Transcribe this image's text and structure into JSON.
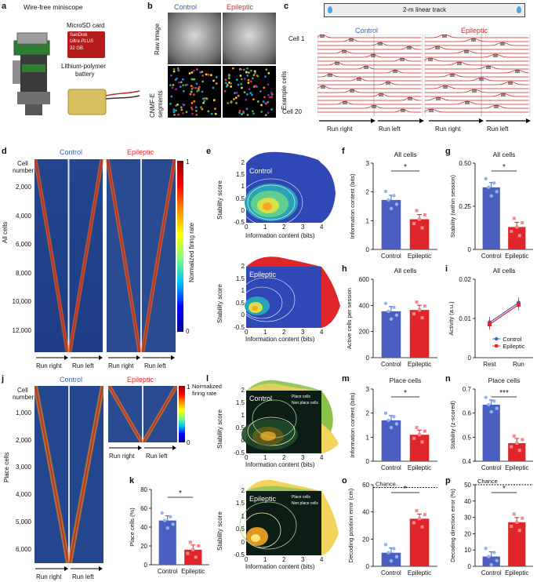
{
  "panel_letters": [
    "a",
    "b",
    "c",
    "d",
    "e",
    "f",
    "g",
    "h",
    "i",
    "j",
    "k",
    "l",
    "m",
    "n",
    "o",
    "p"
  ],
  "colors": {
    "control": "#4a5fc1",
    "epileptic": "#e0262a",
    "heat_low": "#1a237e",
    "heat_high": "#b71c1c"
  },
  "a": {
    "title": "Wire-free miniscope",
    "sd": "MicroSD card",
    "battery_1": "Lithium-polymer",
    "battery_2": "battery",
    "sd_brand": "SanDisk",
    "sd_model": "Ultra PLUS",
    "sd_size": "32 GB"
  },
  "b": {
    "control": "Control",
    "epileptic": "Epileptic",
    "row1": "Raw image",
    "row2a": "CNMF-E",
    "row2b": "segments"
  },
  "c": {
    "track": "2-m linear track",
    "control": "Control",
    "epileptic": "Epileptic",
    "ylabel": "Example cells",
    "cell1": "Cell 1",
    "cell20": "Cell 20",
    "run_right": "Run right",
    "run_left": "Run left"
  },
  "d": {
    "control": "Control",
    "epileptic": "Epileptic",
    "cell_number_1": "Cell",
    "cell_number_2": "number",
    "ylabel": "All cells",
    "ticks": [
      "2,000",
      "4,000",
      "6,000",
      "8,000",
      "10,000",
      "12,000"
    ],
    "cb_label": "Normalized firing rate",
    "cb_max": "1",
    "cb_min": "0",
    "run_right": "Run right",
    "run_left": "Run left"
  },
  "e": {
    "control": "Control",
    "epileptic": "Epileptic",
    "ylabel": "Stability score",
    "xlabel": "Information content (bits)",
    "yticks": [
      "2",
      "1.5",
      "1",
      "0.5",
      "0",
      "-0.5"
    ],
    "xticks": [
      "0",
      "1",
      "2",
      "3",
      "4"
    ]
  },
  "l": {
    "control": "Control",
    "epileptic": "Epileptic",
    "ylabel": "Stability score",
    "xlabel": "Information content (bits)",
    "legend_place": "Place cells",
    "legend_nonplace": "Non place cells",
    "yticks": [
      "2",
      "1.5",
      "1",
      "0.5",
      "0",
      "-0.5"
    ],
    "xticks": [
      "0",
      "1",
      "2",
      "3",
      "4"
    ]
  },
  "j": {
    "control": "Control",
    "epileptic": "Epileptic",
    "cell_number_1": "Cell",
    "cell_number_2": "number",
    "ylabel": "Place cells",
    "ticks": [
      "1,000",
      "2,000",
      "3,000",
      "4,000",
      "5,000",
      "6,000"
    ],
    "cb_label": "Normalized firing rate",
    "cb_max": "1",
    "cb_min": "0",
    "run_right": "Run right",
    "run_left": "Run left"
  },
  "chart_data": [
    {
      "id": "f",
      "type": "bar",
      "title": "All cells",
      "categories": [
        "Control",
        "Epileptic"
      ],
      "values": [
        1.72,
        1.05
      ],
      "ylabel": "Information content (bits)",
      "ylim": [
        0,
        3
      ],
      "yticks": [
        "0",
        "1",
        "2",
        "3"
      ],
      "sig": "*"
    },
    {
      "id": "g",
      "type": "bar",
      "title": "All cells",
      "categories": [
        "Control",
        "Epileptic"
      ],
      "values": [
        0.36,
        0.13
      ],
      "ylabel": "Stability (within session)",
      "ylim": [
        0,
        0.5
      ],
      "yticks": [
        "0",
        "0.25",
        "0.50"
      ],
      "sig": "*"
    },
    {
      "id": "h",
      "type": "bar",
      "title": "All cells",
      "categories": [
        "Control",
        "Epileptic"
      ],
      "values": [
        355,
        365
      ],
      "ylabel": "Active cells per session",
      "ylim": [
        0,
        600
      ],
      "yticks": [
        "0",
        "200",
        "400",
        "600"
      ],
      "sig": ""
    },
    {
      "id": "i",
      "type": "line",
      "title": "All cells",
      "categories": [
        "Rest",
        "Run"
      ],
      "series": [
        {
          "name": "Control",
          "values": [
            0.009,
            0.014
          ]
        },
        {
          "name": "Epileptic",
          "values": [
            0.0085,
            0.0135
          ]
        }
      ],
      "ylabel": "Activity (a.u.)",
      "ylim": [
        0,
        0.02
      ],
      "yticks": [
        "0",
        "0.01",
        "0.02"
      ]
    },
    {
      "id": "k",
      "type": "bar",
      "title": "",
      "categories": [
        "Control",
        "Epileptic"
      ],
      "values": [
        47,
        16
      ],
      "ylabel": "Place cells (%)",
      "ylim": [
        0,
        80
      ],
      "yticks": [
        "0",
        "20",
        "40",
        "60",
        "80"
      ],
      "sig": "*"
    },
    {
      "id": "m",
      "type": "bar",
      "title": "Place cells",
      "categories": [
        "Control",
        "Epileptic"
      ],
      "values": [
        1.7,
        1.1
      ],
      "ylabel": "Information content (bits)",
      "ylim": [
        0,
        3
      ],
      "yticks": [
        "0",
        "1",
        "2",
        "3"
      ],
      "sig": "*"
    },
    {
      "id": "n",
      "type": "bar",
      "title": "Place cells",
      "categories": [
        "Control",
        "Epileptic"
      ],
      "values": [
        0.635,
        0.475
      ],
      "ylabel": "Stability (z-scored)",
      "ylim": [
        0.4,
        0.7
      ],
      "yticks": [
        "0.4",
        "0.5",
        "0.6",
        "0.7"
      ],
      "sig": "***"
    },
    {
      "id": "o",
      "type": "bar",
      "title": "",
      "categories": [
        "Control",
        "Epileptic"
      ],
      "values": [
        10,
        35
      ],
      "ylabel": "Decoding position error (cm)",
      "ylim": [
        0,
        60
      ],
      "yticks": [
        "0",
        "20",
        "40",
        "60"
      ],
      "sig": "*",
      "chance": "Chance",
      "chance_value": 58
    },
    {
      "id": "p",
      "type": "bar",
      "title": "",
      "categories": [
        "Control",
        "Epileptic"
      ],
      "values": [
        6,
        27
      ],
      "ylabel": "Decoding direction error (%)",
      "ylim": [
        0,
        50
      ],
      "yticks": [
        "0",
        "10",
        "20",
        "30",
        "40",
        "50"
      ],
      "sig": "*",
      "chance": "Chance",
      "chance_value": 50
    }
  ]
}
